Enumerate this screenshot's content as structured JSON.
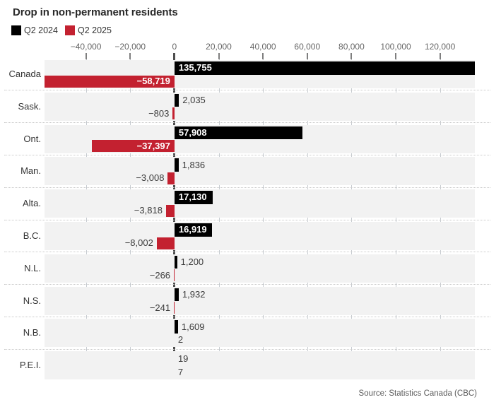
{
  "title": "Drop in non-permanent residents",
  "legend": {
    "items": [
      {
        "label": "Q2 2024",
        "color": "#000000"
      },
      {
        "label": "Q2 2025",
        "color": "#c32130"
      }
    ]
  },
  "source": "Source: Statistics Canada (CBC)",
  "colors": {
    "band_bg": "#f2f2f2",
    "grid": "#c7ccd1",
    "zero_line": "#4e4e4e",
    "tick": "#7f7f7f",
    "axis_text": "#666666",
    "category_text": "#333333",
    "value_text_outside": "#3b3b3b",
    "value_text_inside": "#ffffff"
  },
  "chart_data": {
    "type": "bar",
    "orientation": "horizontal",
    "title": "Drop in non-permanent residents",
    "categories": [
      "Canada",
      "Sask.",
      "Ont.",
      "Man.",
      "Alta.",
      "B.C.",
      "N.L.",
      "N.S.",
      "N.B.",
      "P.E.I."
    ],
    "series": [
      {
        "name": "Q2 2024",
        "color": "#000000",
        "values": [
          135755,
          2035,
          57908,
          1836,
          17130,
          16919,
          1200,
          1932,
          1609,
          19
        ],
        "labels": [
          "135,755",
          "2,035",
          "57,908",
          "1,836",
          "17,130",
          "16,919",
          "1,200",
          "1,932",
          "1,609",
          "19"
        ]
      },
      {
        "name": "Q2 2025",
        "color": "#c32130",
        "values": [
          -58719,
          -803,
          -37397,
          -3008,
          -3818,
          -8002,
          -266,
          -241,
          2,
          7
        ],
        "labels": [
          "−58,719",
          "−803",
          "−37,397",
          "−3,008",
          "−3,818",
          "−8,002",
          "−266",
          "−241",
          "2",
          "7"
        ]
      }
    ],
    "x_axis": {
      "ticks": [
        -40000,
        -20000,
        0,
        20000,
        40000,
        60000,
        80000,
        100000,
        120000
      ],
      "tick_labels": [
        "−40,000",
        "−20,000",
        "0",
        "20,000",
        "40,000",
        "60,000",
        "80,000",
        "100,000",
        "120,000"
      ],
      "position": "top"
    },
    "xlim": [
      -58719,
      135755
    ],
    "grid": true,
    "legend_position": "top-left"
  }
}
